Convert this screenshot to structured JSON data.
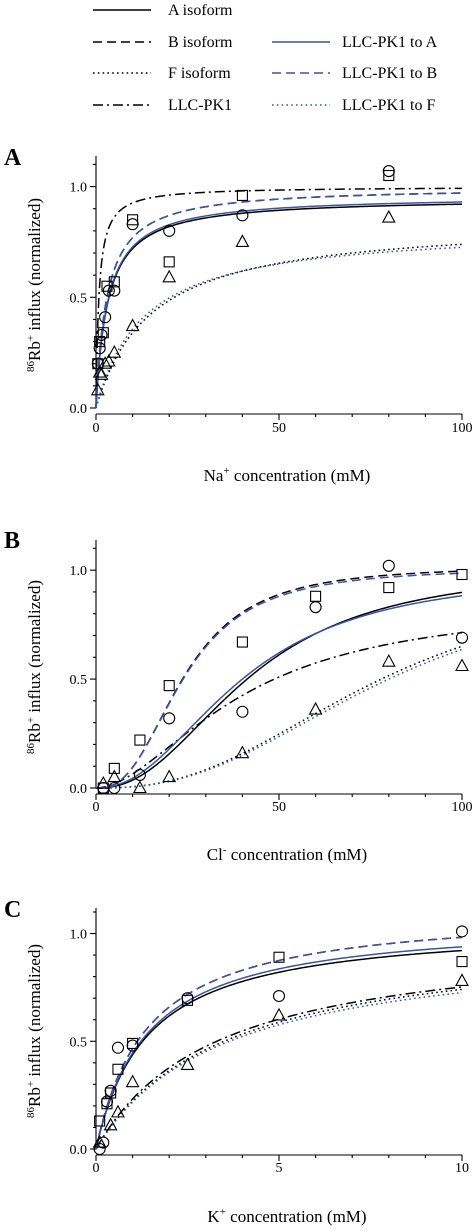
{
  "colors": {
    "black": "#000000",
    "blue": "#3a54a4"
  },
  "legend": [
    {
      "label": "A isoform",
      "style": "solid",
      "color": "#000000"
    },
    {
      "label": "B isoform",
      "style": "dashed",
      "color": "#000000"
    },
    {
      "label": "F isoform",
      "style": "dotted",
      "color": "#000000"
    },
    {
      "label": "LLC-PK1",
      "style": "dashdot",
      "color": "#000000"
    },
    {
      "label": "LLC-PK1 to A",
      "style": "solid",
      "color": "#3a54a4"
    },
    {
      "label": "LLC-PK1 to B",
      "style": "dashed",
      "color": "#3a54a4"
    },
    {
      "label": "LLC-PK1 to F",
      "style": "dotted",
      "color": "#3a54a4"
    }
  ],
  "chart_data": [
    {
      "panel": "A",
      "type": "scatter",
      "xlabel": "Na",
      "xlabel_sup": "+",
      "xlabel_rest": " concentration (mM)",
      "ylabel": "86Rb+ influx (normalized)",
      "xlim": [
        0,
        100
      ],
      "ylim": [
        0,
        1.12
      ],
      "xticks": [
        0,
        50,
        100
      ],
      "xtick_labels": [
        "0",
        "50",
        "100"
      ],
      "yticks": [
        0,
        0.5,
        1.0
      ],
      "ytick_labels": [
        "0.0",
        "0.5",
        "1.0"
      ],
      "points": {
        "circle": [
          [
            0.5,
            0.2
          ],
          [
            1,
            0.27
          ],
          [
            1.5,
            0.33
          ],
          [
            2.5,
            0.41
          ],
          [
            3.5,
            0.53
          ],
          [
            5,
            0.53
          ],
          [
            10,
            0.83
          ],
          [
            20,
            0.8
          ],
          [
            40,
            0.87
          ],
          [
            80,
            1.07
          ]
        ],
        "square": [
          [
            0.5,
            0.2
          ],
          [
            1,
            0.3
          ],
          [
            2,
            0.34
          ],
          [
            3,
            0.55
          ],
          [
            5,
            0.57
          ],
          [
            10,
            0.85
          ],
          [
            20,
            0.66
          ],
          [
            40,
            0.96
          ],
          [
            80,
            1.05
          ]
        ],
        "triangle": [
          [
            0.5,
            0.08
          ],
          [
            1,
            0.16
          ],
          [
            1.5,
            0.15
          ],
          [
            2.5,
            0.2
          ],
          [
            3.5,
            0.21
          ],
          [
            5,
            0.25
          ],
          [
            10,
            0.37
          ],
          [
            20,
            0.59
          ],
          [
            40,
            0.75
          ],
          [
            80,
            0.86
          ]
        ]
      },
      "series": [
        {
          "legend": 0,
          "model": "mm",
          "vmax": 0.95,
          "k": 3.2,
          "n": 1
        },
        {
          "legend": 1,
          "model": "mm",
          "vmax": 1.0,
          "k": 3.0,
          "n": 1
        },
        {
          "legend": 2,
          "model": "mm",
          "vmax": 0.85,
          "k": 15,
          "n": 1
        },
        {
          "legend": 3,
          "model": "mm",
          "vmax": 1.0,
          "k": 0.8,
          "n": 1
        },
        {
          "legend": 4,
          "model": "mm",
          "vmax": 0.96,
          "k": 3.2,
          "n": 1
        },
        {
          "legend": 5,
          "model": "mm",
          "vmax": 1.0,
          "k": 3.0,
          "n": 1
        },
        {
          "legend": 6,
          "model": "mm",
          "vmax": 0.82,
          "k": 13,
          "n": 1
        }
      ]
    },
    {
      "panel": "B",
      "type": "scatter",
      "xlabel": "Cl",
      "xlabel_sup": "-",
      "xlabel_rest": " concentration (mM)",
      "ylabel": "86Rb+ influx (normalized)",
      "xlim": [
        0,
        100
      ],
      "ylim": [
        0,
        1.12
      ],
      "xticks": [
        0,
        50,
        100
      ],
      "xtick_labels": [
        "0",
        "50",
        "100"
      ],
      "yticks": [
        0,
        0.5,
        1.0
      ],
      "ytick_labels": [
        "0.0",
        "0.5",
        "1.0"
      ],
      "points": {
        "circle": [
          [
            2,
            0.0
          ],
          [
            5,
            0.0
          ],
          [
            12,
            0.06
          ],
          [
            20,
            0.32
          ],
          [
            40,
            0.35
          ],
          [
            60,
            0.83
          ],
          [
            80,
            1.02
          ],
          [
            100,
            0.69
          ]
        ],
        "square": [
          [
            2,
            0.0
          ],
          [
            5,
            0.09
          ],
          [
            12,
            0.22
          ],
          [
            20,
            0.47
          ],
          [
            40,
            0.67
          ],
          [
            60,
            0.88
          ],
          [
            80,
            0.92
          ],
          [
            100,
            0.98
          ]
        ],
        "triangle": [
          [
            2,
            0.02
          ],
          [
            5,
            0.05
          ],
          [
            12,
            0.0
          ],
          [
            20,
            0.05
          ],
          [
            40,
            0.16
          ],
          [
            60,
            0.36
          ],
          [
            80,
            0.58
          ],
          [
            100,
            0.56
          ]
        ]
      },
      "series": [
        {
          "legend": 0,
          "model": "hill",
          "vmax": 1.02,
          "k": 42,
          "n": 2.3
        },
        {
          "legend": 1,
          "model": "hill",
          "vmax": 1.02,
          "k": 24,
          "n": 2.6
        },
        {
          "legend": 2,
          "model": "hill",
          "vmax": 1.0,
          "k": 78,
          "n": 2.5
        },
        {
          "legend": 3,
          "model": "hill",
          "vmax": 0.85,
          "k": 40,
          "n": 1.8
        },
        {
          "legend": 4,
          "model": "hill",
          "vmax": 1.0,
          "k": 40,
          "n": 2.2
        },
        {
          "legend": 5,
          "model": "hill",
          "vmax": 1.01,
          "k": 24,
          "n": 2.6
        },
        {
          "legend": 6,
          "model": "hill",
          "vmax": 1.0,
          "k": 80,
          "n": 2.5
        }
      ]
    },
    {
      "panel": "C",
      "type": "scatter",
      "xlabel": "K",
      "xlabel_sup": "+",
      "xlabel_rest": " concentration (mM)",
      "ylabel": "86Rb+ influx (normalized)",
      "xlim": [
        0,
        10
      ],
      "ylim": [
        0,
        1.1
      ],
      "xticks": [
        0,
        5,
        10
      ],
      "xtick_labels": [
        "0",
        "5",
        "10"
      ],
      "yticks": [
        0,
        0.5,
        1.0
      ],
      "ytick_labels": [
        "0.0",
        "0.5",
        "1.0"
      ],
      "points": {
        "circle": [
          [
            0.1,
            0.0
          ],
          [
            0.2,
            0.03
          ],
          [
            0.3,
            0.22
          ],
          [
            0.4,
            0.27
          ],
          [
            0.6,
            0.47
          ],
          [
            1.0,
            0.48
          ],
          [
            2.5,
            0.7
          ],
          [
            5,
            0.71
          ],
          [
            10,
            1.01
          ]
        ],
        "square": [
          [
            0.1,
            0.13
          ],
          [
            0.3,
            0.21
          ],
          [
            0.4,
            0.26
          ],
          [
            0.6,
            0.37
          ],
          [
            1.0,
            0.49
          ],
          [
            2.5,
            0.69
          ],
          [
            5,
            0.89
          ],
          [
            10,
            0.87
          ]
        ],
        "triangle": [
          [
            0.1,
            0.03
          ],
          [
            0.4,
            0.11
          ],
          [
            0.6,
            0.17
          ],
          [
            1.0,
            0.31
          ],
          [
            2.5,
            0.39
          ],
          [
            5,
            0.62
          ],
          [
            10,
            0.78
          ]
        ]
      },
      "series": [
        {
          "legend": 0,
          "model": "mm",
          "vmax": 1.05,
          "k": 1.4,
          "n": 1
        },
        {
          "legend": 1,
          "model": "mm",
          "vmax": 1.12,
          "k": 1.4,
          "n": 1
        },
        {
          "legend": 2,
          "model": "mm",
          "vmax": 1.0,
          "k": 3.5,
          "n": 1
        },
        {
          "legend": 3,
          "model": "mm",
          "vmax": 1.0,
          "k": 3.3,
          "n": 1
        },
        {
          "legend": 4,
          "model": "mm",
          "vmax": 1.07,
          "k": 1.4,
          "n": 1
        },
        {
          "legend": 5,
          "model": "mm",
          "vmax": 1.12,
          "k": 1.4,
          "n": 1
        },
        {
          "legend": 6,
          "model": "mm",
          "vmax": 0.98,
          "k": 3.5,
          "n": 1
        }
      ]
    }
  ]
}
